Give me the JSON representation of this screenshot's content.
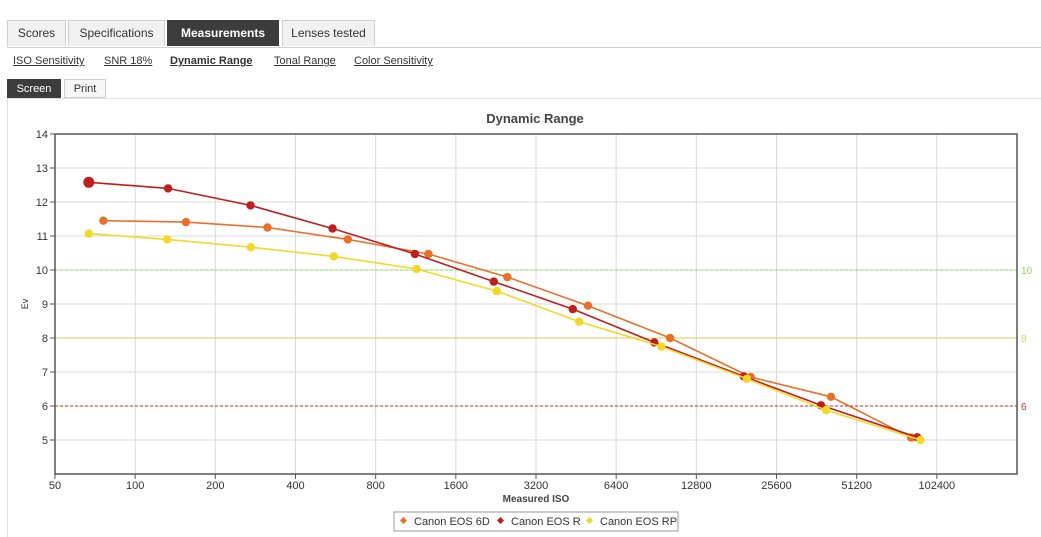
{
  "tabs": [
    {
      "label": "Scores",
      "active": false
    },
    {
      "label": "Specifications",
      "active": false
    },
    {
      "label": "Measurements",
      "active": true
    },
    {
      "label": "Lenses tested",
      "active": false
    }
  ],
  "subnav": [
    {
      "label": "ISO Sensitivity",
      "active": false
    },
    {
      "label": "SNR 18%",
      "active": false
    },
    {
      "label": "Dynamic Range",
      "active": true
    },
    {
      "label": "Tonal Range",
      "active": false
    },
    {
      "label": "Color Sensitivity",
      "active": false
    }
  ],
  "modes": [
    {
      "label": "Screen",
      "active": true
    },
    {
      "label": "Print",
      "active": false
    }
  ],
  "chart_data": {
    "type": "line",
    "title": "Dynamic Range",
    "xlabel": "Measured ISO",
    "ylabel": "Ev",
    "x_scale": "log2",
    "xlim": [
      50,
      204800
    ],
    "ylim": [
      4,
      14
    ],
    "x_ticks": [
      "50",
      "100",
      "200",
      "400",
      "800",
      "1600",
      "3200",
      "6400",
      "12800",
      "25600",
      "51200",
      "102400"
    ],
    "y_ticks": [
      "5",
      "6",
      "7",
      "8",
      "9",
      "10",
      "11",
      "12",
      "13",
      "14"
    ],
    "grid": true,
    "legend_position": "bottom-center",
    "reference_lines": [
      {
        "y": 10,
        "label": "10",
        "color": "#88e04a",
        "style": "dashed"
      },
      {
        "y": 8,
        "label": "8",
        "color": "#d9d25a",
        "style": "solid"
      },
      {
        "y": 6,
        "label": "6",
        "color": "#b03a2e",
        "style": "dashed"
      }
    ],
    "series": [
      {
        "name": "Canon EOS 6D",
        "color": "#e8702a",
        "points": [
          [
            76,
            11.45
          ],
          [
            155,
            11.41
          ],
          [
            314,
            11.25
          ],
          [
            629,
            10.9
          ],
          [
            1262,
            10.47
          ],
          [
            2500,
            9.79
          ],
          [
            5015,
            8.95
          ],
          [
            10200,
            8.0
          ],
          [
            20500,
            6.85
          ],
          [
            41000,
            6.27
          ],
          [
            82000,
            5.07
          ]
        ]
      },
      {
        "name": "Canon EOS R",
        "color": "#bf1e1e",
        "points": [
          [
            67,
            12.58
          ],
          [
            133,
            12.4
          ],
          [
            271,
            11.9
          ],
          [
            551,
            11.22
          ],
          [
            1123,
            10.47
          ],
          [
            2222,
            9.66
          ],
          [
            4400,
            8.85
          ],
          [
            8900,
            7.87
          ],
          [
            19300,
            6.87
          ],
          [
            37600,
            6.02
          ],
          [
            86500,
            5.08
          ]
        ]
      },
      {
        "name": "Canon EOS RP",
        "color": "#f2d829",
        "points": [
          [
            67,
            11.07
          ],
          [
            132,
            10.9
          ],
          [
            272,
            10.67
          ],
          [
            557,
            10.4
          ],
          [
            1140,
            10.03
          ],
          [
            2280,
            9.38
          ],
          [
            4650,
            8.48
          ],
          [
            9460,
            7.75
          ],
          [
            19800,
            6.8
          ],
          [
            39300,
            5.88
          ],
          [
            88900,
            5.0
          ]
        ]
      }
    ]
  }
}
